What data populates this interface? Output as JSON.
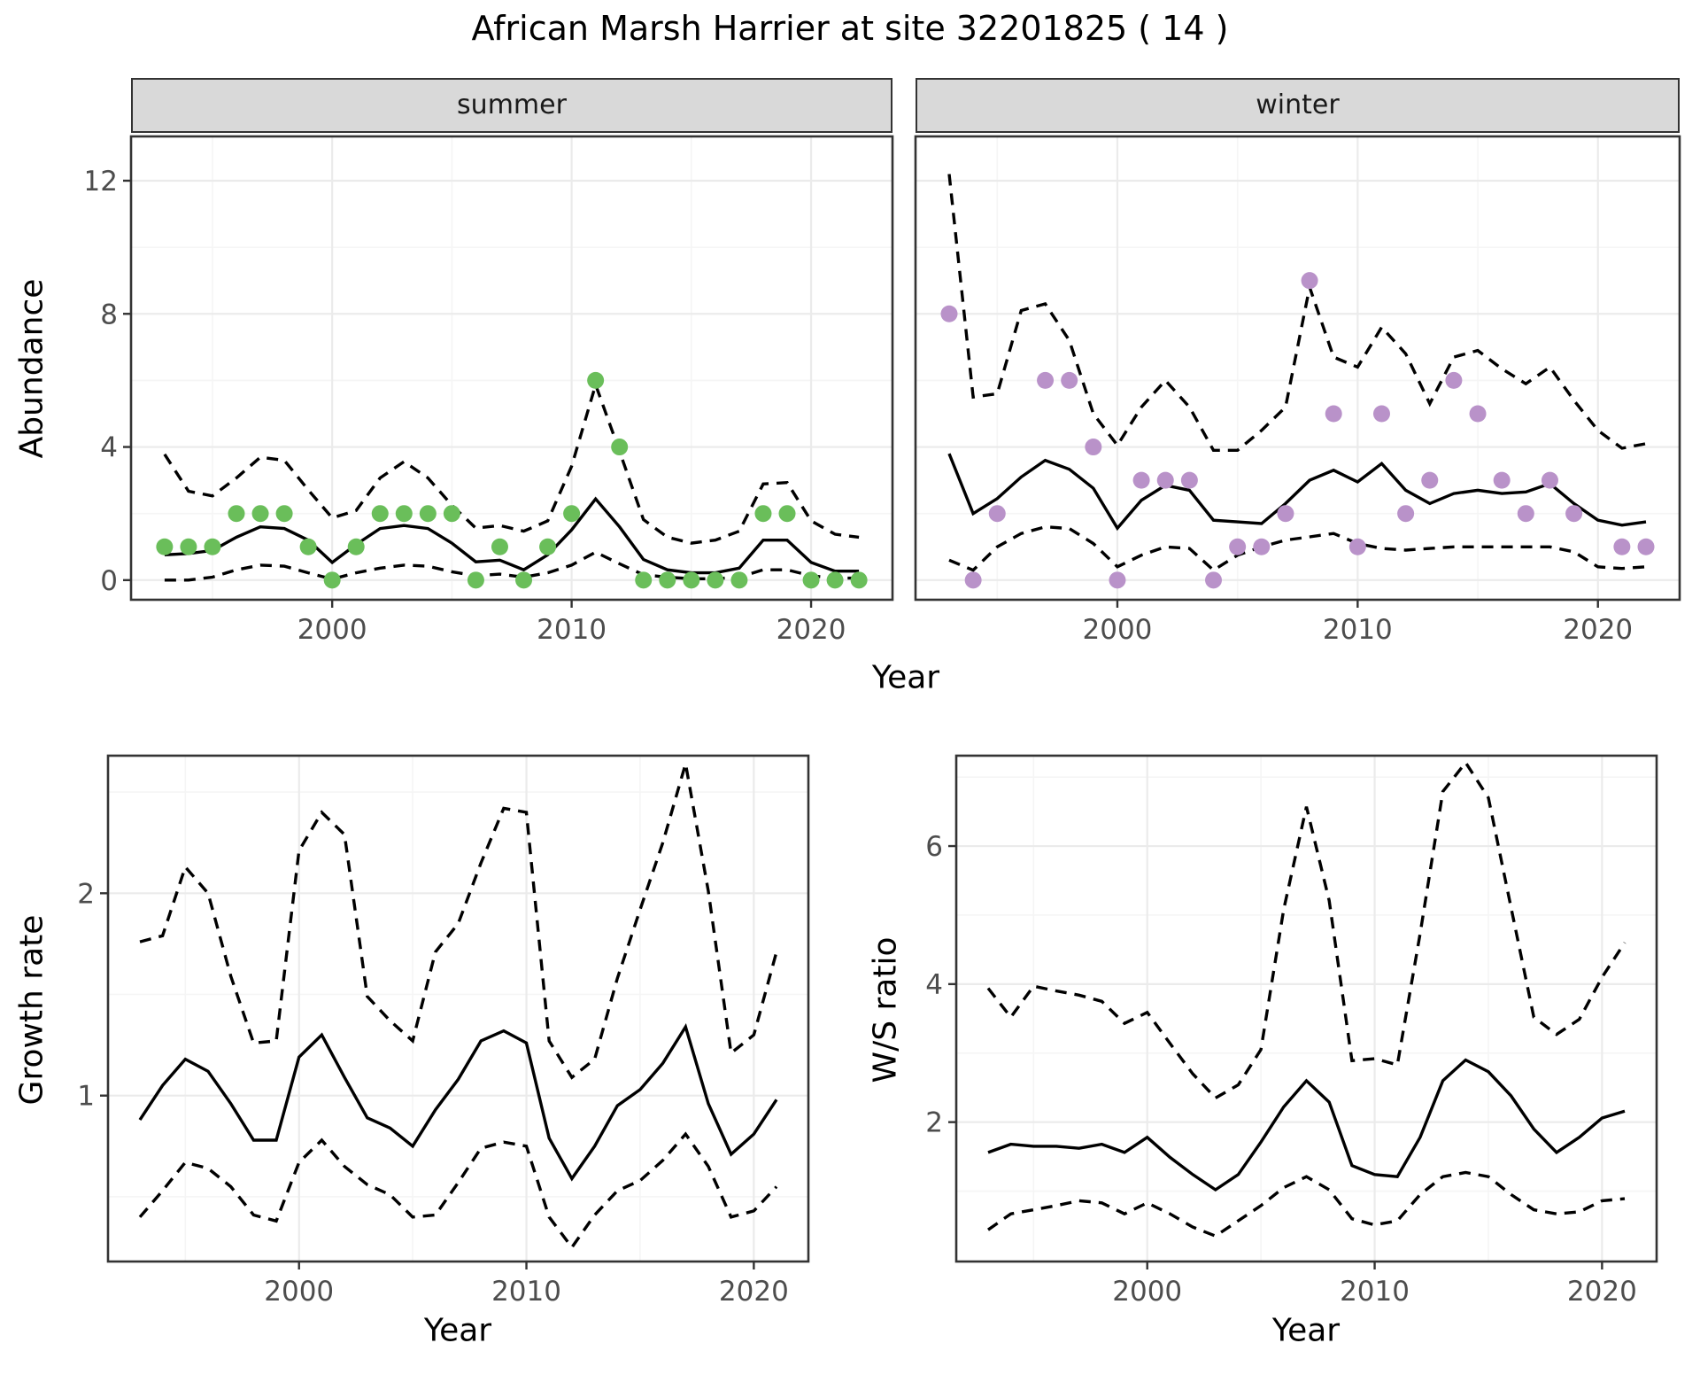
{
  "title": "African Marsh Harrier at site 32201825 ( 14 )",
  "labels": {
    "y_abundance": "Abundance",
    "y_growth": "Growth rate",
    "y_ws": "W/S ratio",
    "x_year_top": "Year",
    "x_year_bottom_left": "Year",
    "x_year_bottom_right": "Year",
    "facet_summer": "summer",
    "facet_winter": "winter"
  },
  "colors": {
    "summer_point": "#6ABE5A",
    "winter_point": "#B992C9",
    "line": "#000000",
    "strip_bg": "#D9D9D9",
    "panel_border": "#333333",
    "grid_major": "#EBEBEB",
    "grid_minor": "#F5F5F5",
    "tick_label": "#4D4D4D",
    "background": "#FFFFFF"
  },
  "chart_data": [
    {
      "id": "summer",
      "type": "line",
      "subtype": "fit-with-ci-and-scatter",
      "facet_label": "summer",
      "xlabel": "Year",
      "ylabel": "Abundance",
      "xlim": [
        1991.6,
        2023.4
      ],
      "ylim": [
        -0.59,
        13.33
      ],
      "xticks": [
        2000,
        2010,
        2020
      ],
      "xticks_minor": [
        1995,
        2005,
        2015
      ],
      "yticks": [
        0,
        4,
        8,
        12
      ],
      "yticks_minor": [
        2,
        6,
        10
      ],
      "grid": true,
      "legend": "none",
      "years": [
        1993,
        1994,
        1995,
        1996,
        1997,
        1998,
        1999,
        2000,
        2001,
        2002,
        2003,
        2004,
        2005,
        2006,
        2007,
        2008,
        2009,
        2010,
        2011,
        2012,
        2013,
        2014,
        2015,
        2016,
        2017,
        2018,
        2019,
        2020,
        2021,
        2022
      ],
      "points": [
        1,
        1,
        1,
        2,
        2,
        2,
        1,
        0,
        1,
        2,
        2,
        2,
        2,
        0,
        1,
        0,
        1,
        2,
        6,
        4,
        0,
        0,
        0,
        0,
        0,
        2,
        2,
        0,
        0,
        0
      ],
      "fit": [
        0.76,
        0.8,
        0.89,
        1.29,
        1.6,
        1.55,
        1.2,
        0.53,
        1.07,
        1.55,
        1.64,
        1.55,
        1.11,
        0.55,
        0.6,
        0.31,
        0.76,
        1.51,
        2.44,
        1.6,
        0.62,
        0.31,
        0.22,
        0.22,
        0.36,
        1.2,
        1.2,
        0.53,
        0.27,
        0.27
      ],
      "upper_ci": [
        3.78,
        2.67,
        2.53,
        3.07,
        3.69,
        3.6,
        2.71,
        1.87,
        2.09,
        3.07,
        3.56,
        3.07,
        2.25,
        1.56,
        1.64,
        1.47,
        1.78,
        3.42,
        5.87,
        3.87,
        1.82,
        1.29,
        1.11,
        1.2,
        1.47,
        2.89,
        2.93,
        1.78,
        1.38,
        1.29
      ],
      "lower_ci": [
        0.0,
        0.0,
        0.09,
        0.31,
        0.45,
        0.42,
        0.22,
        0.03,
        0.22,
        0.36,
        0.45,
        0.42,
        0.25,
        0.13,
        0.18,
        0.09,
        0.22,
        0.45,
        0.84,
        0.49,
        0.16,
        0.09,
        0.04,
        0.04,
        0.09,
        0.31,
        0.31,
        0.13,
        0.06,
        0.06
      ]
    },
    {
      "id": "winter",
      "type": "line",
      "subtype": "fit-with-ci-and-scatter",
      "facet_label": "winter",
      "xlabel": "Year",
      "ylabel": "Abundance",
      "xlim": [
        1991.6,
        2023.4
      ],
      "ylim": [
        -0.59,
        13.33
      ],
      "xticks": [
        2000,
        2010,
        2020
      ],
      "xticks_minor": [
        1995,
        2005,
        2015
      ],
      "yticks": [
        0,
        4,
        8,
        12
      ],
      "yticks_minor": [
        2,
        6,
        10
      ],
      "grid": true,
      "legend": "none",
      "years": [
        1993,
        1994,
        1995,
        1996,
        1997,
        1998,
        1999,
        2000,
        2001,
        2002,
        2003,
        2004,
        2005,
        2006,
        2007,
        2008,
        2009,
        2010,
        2011,
        2012,
        2013,
        2014,
        2015,
        2016,
        2017,
        2018,
        2019,
        2020,
        2021,
        2022
      ],
      "points": [
        8,
        0,
        2,
        null,
        6,
        6,
        4,
        0,
        3,
        3,
        3,
        0,
        1,
        1,
        2,
        9,
        5,
        1,
        5,
        2,
        3,
        6,
        5,
        3,
        2,
        3,
        2,
        null,
        1,
        1
      ],
      "fit": [
        3.8,
        2.0,
        2.45,
        3.1,
        3.6,
        3.33,
        2.76,
        1.56,
        2.4,
        2.85,
        2.7,
        1.8,
        1.75,
        1.7,
        2.3,
        3.0,
        3.3,
        2.95,
        3.5,
        2.7,
        2.3,
        2.6,
        2.7,
        2.6,
        2.65,
        2.9,
        2.3,
        1.8,
        1.65,
        1.75
      ],
      "upper_ci": [
        12.2,
        5.5,
        5.6,
        8.1,
        8.3,
        7.2,
        5.0,
        4.05,
        5.2,
        6.0,
        5.2,
        3.9,
        3.9,
        4.5,
        5.2,
        8.8,
        6.7,
        6.4,
        7.6,
        6.8,
        5.3,
        6.7,
        6.9,
        6.35,
        5.9,
        6.4,
        5.4,
        4.5,
        3.96,
        4.1
      ],
      "lower_ci": [
        0.6,
        0.3,
        1.0,
        1.4,
        1.6,
        1.55,
        1.1,
        0.4,
        0.75,
        1.0,
        0.95,
        0.3,
        0.75,
        1.0,
        1.2,
        1.3,
        1.4,
        1.1,
        0.95,
        0.9,
        0.95,
        1.0,
        1.0,
        1.0,
        1.0,
        1.0,
        0.85,
        0.4,
        0.35,
        0.4
      ]
    },
    {
      "id": "growth",
      "type": "line",
      "subtype": "fit-with-ci",
      "facet_label": "",
      "xlabel": "Year",
      "ylabel": "Growth rate",
      "xlim": [
        1991.6,
        2022.4
      ],
      "ylim": [
        0.18,
        2.68
      ],
      "xticks": [
        2000,
        2010,
        2020
      ],
      "xticks_minor": [
        1995,
        2005,
        2015
      ],
      "yticks": [
        1,
        2
      ],
      "yticks_minor": [
        0.5,
        1.5,
        2.5
      ],
      "grid": true,
      "legend": "none",
      "years": [
        1993,
        1994,
        1995,
        1996,
        1997,
        1998,
        1999,
        2000,
        2001,
        2002,
        2003,
        2004,
        2005,
        2006,
        2007,
        2008,
        2009,
        2010,
        2011,
        2012,
        2013,
        2014,
        2015,
        2016,
        2017,
        2018,
        2019,
        2020,
        2021
      ],
      "points": null,
      "fit": [
        0.88,
        1.05,
        1.18,
        1.12,
        0.96,
        0.78,
        0.78,
        1.19,
        1.3,
        1.09,
        0.89,
        0.84,
        0.75,
        0.93,
        1.08,
        1.27,
        1.32,
        1.26,
        0.79,
        0.59,
        0.75,
        0.95,
        1.03,
        1.16,
        1.34,
        0.96,
        0.71,
        0.81,
        0.98
      ],
      "upper_ci": [
        1.76,
        1.79,
        2.13,
        2.0,
        1.59,
        1.26,
        1.27,
        2.21,
        2.4,
        2.29,
        1.49,
        1.37,
        1.27,
        1.71,
        1.85,
        2.15,
        2.42,
        2.4,
        1.27,
        1.09,
        1.18,
        1.58,
        1.92,
        2.25,
        2.64,
        2.01,
        1.21,
        1.3,
        1.71
      ],
      "lower_ci": [
        0.4,
        0.53,
        0.67,
        0.64,
        0.55,
        0.41,
        0.38,
        0.67,
        0.78,
        0.65,
        0.56,
        0.51,
        0.4,
        0.41,
        0.57,
        0.74,
        0.77,
        0.75,
        0.4,
        0.25,
        0.41,
        0.53,
        0.58,
        0.68,
        0.81,
        0.65,
        0.4,
        0.43,
        0.55
      ]
    },
    {
      "id": "ws",
      "type": "line",
      "subtype": "fit-with-ci",
      "facet_label": "",
      "xlabel": "Year",
      "ylabel": "W/S ratio",
      "xlim": [
        1991.6,
        2022.4
      ],
      "ylim": [
        -0.02,
        7.31
      ],
      "xticks": [
        2000,
        2010,
        2020
      ],
      "xticks_minor": [
        1995,
        2005,
        2015
      ],
      "yticks": [
        2,
        4,
        6
      ],
      "yticks_minor": [
        1,
        3,
        5,
        7
      ],
      "grid": true,
      "legend": "none",
      "years": [
        1993,
        1994,
        1995,
        1996,
        1997,
        1998,
        1999,
        2000,
        2001,
        2002,
        2003,
        2004,
        2005,
        2006,
        2007,
        2008,
        2009,
        2010,
        2011,
        2012,
        2013,
        2014,
        2015,
        2016,
        2017,
        2018,
        2019,
        2020,
        2021
      ],
      "points": null,
      "fit": [
        1.56,
        1.68,
        1.65,
        1.65,
        1.62,
        1.68,
        1.56,
        1.78,
        1.49,
        1.24,
        1.02,
        1.24,
        1.71,
        2.22,
        2.6,
        2.29,
        1.37,
        1.24,
        1.21,
        1.78,
        2.6,
        2.9,
        2.73,
        2.38,
        1.9,
        1.56,
        1.78,
        2.06,
        2.16
      ],
      "upper_ci": [
        3.94,
        3.52,
        3.97,
        3.9,
        3.84,
        3.75,
        3.43,
        3.59,
        3.14,
        2.7,
        2.35,
        2.54,
        3.05,
        5.08,
        6.57,
        5.21,
        2.89,
        2.92,
        2.83,
        4.73,
        6.79,
        7.21,
        6.7,
        5.11,
        3.52,
        3.27,
        3.49,
        4.1,
        4.6
      ],
      "lower_ci": [
        0.44,
        0.67,
        0.73,
        0.79,
        0.86,
        0.83,
        0.67,
        0.83,
        0.67,
        0.48,
        0.35,
        0.57,
        0.79,
        1.05,
        1.21,
        1.02,
        0.6,
        0.51,
        0.57,
        0.95,
        1.21,
        1.27,
        1.21,
        0.95,
        0.73,
        0.67,
        0.7,
        0.86,
        0.89
      ]
    }
  ]
}
